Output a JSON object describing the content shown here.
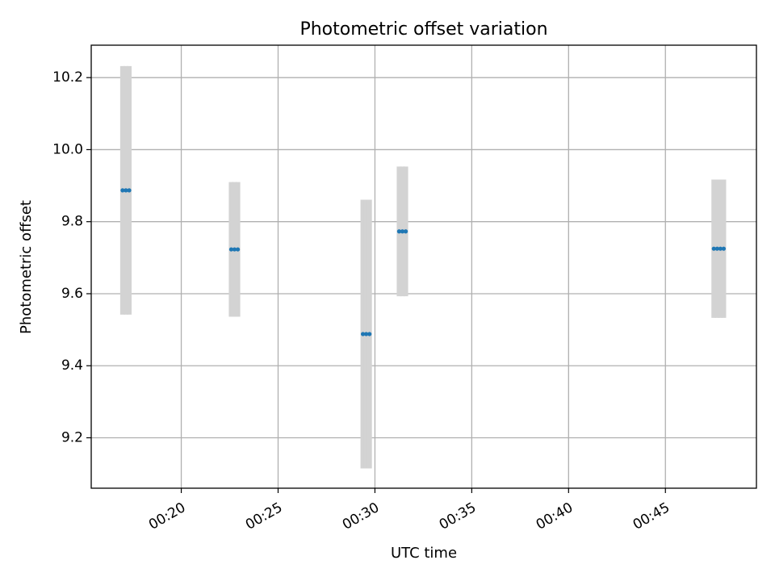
{
  "chart_data": {
    "type": "scatter",
    "title": "Photometric offset variation",
    "xlabel": "UTC time",
    "ylabel": "Photometric offset",
    "x_ticks": [
      "00:20",
      "00:25",
      "00:30",
      "00:35",
      "00:40",
      "00:45"
    ],
    "x_tick_values_min": [
      20,
      25,
      30,
      35,
      40,
      45
    ],
    "xlim_min": [
      15.35,
      49.7
    ],
    "y_ticks": [
      "9.2",
      "9.4",
      "9.6",
      "9.8",
      "10.0",
      "10.2"
    ],
    "y_tick_values": [
      9.2,
      9.4,
      9.6,
      9.8,
      10.0,
      10.2
    ],
    "ylim": [
      9.06,
      10.29
    ],
    "grid": true,
    "errorbar_color": "#d3d3d3",
    "point_color": "#1f77b4",
    "series": [
      {
        "groups": [
          {
            "x_min": [
              16.97,
              17.14,
              17.31
            ],
            "y": 9.887,
            "err": 0.345
          },
          {
            "x_min": [
              22.58,
              22.75,
              22.92
            ],
            "y": 9.723,
            "err": 0.187
          },
          {
            "x_min": [
              29.38,
              29.55,
              29.72
            ],
            "y": 9.488,
            "err": 0.373
          },
          {
            "x_min": [
              31.25,
              31.42,
              31.59
            ],
            "y": 9.773,
            "err": 0.18
          },
          {
            "x_min": [
              47.5,
              47.67,
              47.84,
              48.01
            ],
            "y": 9.725,
            "err": 0.192
          }
        ]
      }
    ]
  }
}
